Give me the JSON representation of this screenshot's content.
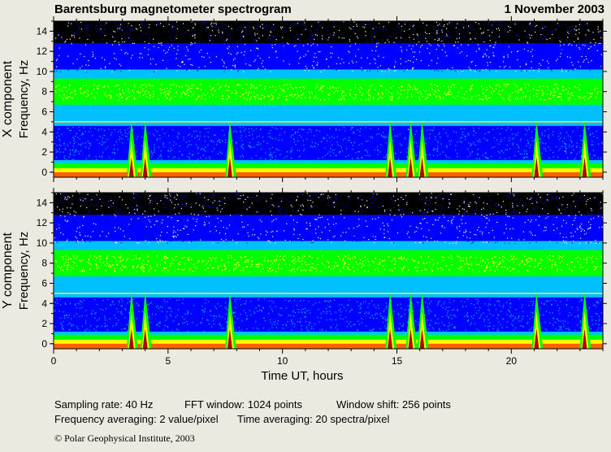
{
  "header": {
    "title": "Barentsburg magnetometer spectrogram",
    "date": "1 November 2003"
  },
  "chart_data": [
    {
      "type": "heatmap",
      "panel": "X component",
      "title": "",
      "xlabel": "Time UT, hours",
      "ylabel_component": "X  component",
      "ylabel": "Frequency, Hz",
      "xlim": [
        0,
        24
      ],
      "ylim": [
        -0.5,
        15
      ],
      "x_ticks": [
        0,
        5,
        10,
        15,
        20
      ],
      "y_ticks": [
        0,
        2,
        4,
        6,
        8,
        10,
        12,
        14
      ],
      "reference_line_hz": 5,
      "green_band_center_hz": 8,
      "bursts_hours": [
        3.4,
        4.0,
        7.7,
        14.7,
        15.6,
        16.1,
        21.1,
        23.2
      ],
      "intensity_colors": [
        "#000000",
        "#0000ff",
        "#00c0ff",
        "#00ff00",
        "#ffff00",
        "#ff6000",
        "#b00000"
      ]
    },
    {
      "type": "heatmap",
      "panel": "Y component",
      "title": "",
      "xlabel": "Time UT, hours",
      "ylabel_component": "Y  component",
      "ylabel": "Frequency, Hz",
      "xlim": [
        0,
        24
      ],
      "ylim": [
        -0.5,
        15
      ],
      "x_ticks": [
        0,
        5,
        10,
        15,
        20
      ],
      "y_ticks": [
        0,
        2,
        4,
        6,
        8,
        10,
        12,
        14
      ],
      "reference_line_hz": 5,
      "green_band_center_hz": 8,
      "bursts_hours": [
        3.4,
        4.0,
        7.7,
        14.7,
        15.6,
        16.1,
        21.1,
        23.2
      ],
      "intensity_colors": [
        "#000000",
        "#0000ff",
        "#00c0ff",
        "#00ff00",
        "#ffff00",
        "#ff6000",
        "#b00000"
      ]
    }
  ],
  "footer": {
    "sampling": "Sampling rate: 40 Hz",
    "fft": "FFT window: 1024 points",
    "shift": "Window shift: 256 points",
    "freq_avg": "Frequency averaging: 2 value/pixel",
    "time_avg": "Time averaging: 20 spectra/pixel",
    "copyright": "© Polar Geophysical Institute, 2003"
  }
}
